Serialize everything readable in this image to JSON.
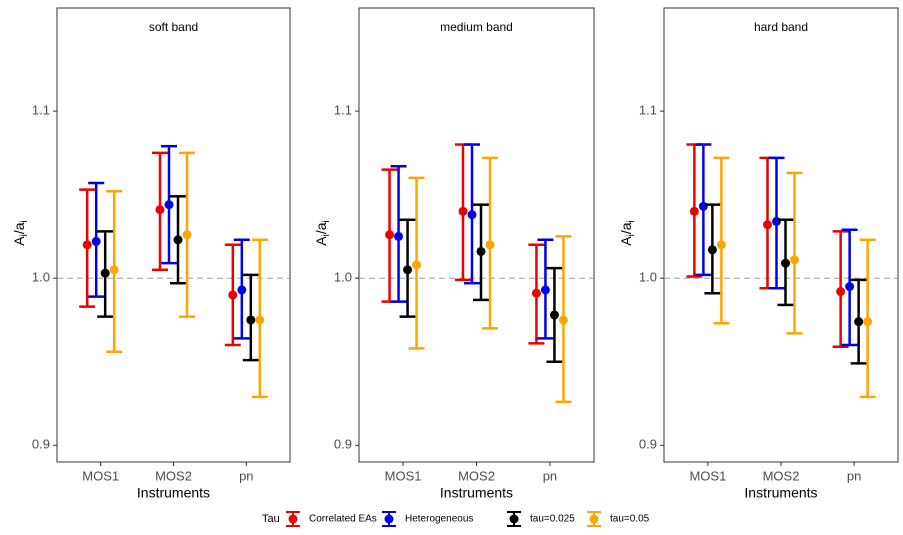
{
  "chart_data": {
    "type": "errorbar",
    "xlabel": "Instruments",
    "ylabel": [
      "A",
      "i",
      "/a",
      "i"
    ],
    "categories": [
      "MOS1",
      "MOS2",
      "pn"
    ],
    "ylim": [
      0.89,
      1.1617
    ],
    "yticks": [
      0.9,
      {
        "value": 1,
        "label": "1.0"
      },
      1.1
    ],
    "hline": 1,
    "legend_title": "Tau",
    "legend_position": "bottom",
    "series": [
      {
        "name": "Correlated EAs",
        "color": "#ee0000"
      },
      {
        "name": "Heterogeneous",
        "color": "#0000ee"
      },
      {
        "name": "tau=0.025",
        "color": "#000000"
      },
      {
        "name": "tau=0.05",
        "color": "#ffa500"
      }
    ],
    "panels": [
      {
        "title": "soft band",
        "series": [
          {
            "values": [
              1.02,
              1.041,
              0.99
            ],
            "low": [
              0.983,
              1.005,
              0.96
            ],
            "high": [
              1.053,
              1.075,
              1.02
            ]
          },
          {
            "values": [
              1.022,
              1.044,
              0.993
            ],
            "low": [
              0.989,
              1.009,
              0.964
            ],
            "high": [
              1.057,
              1.079,
              1.023
            ]
          },
          {
            "values": [
              1.003,
              1.023,
              0.975
            ],
            "low": [
              0.977,
              0.997,
              0.951
            ],
            "high": [
              1.028,
              1.049,
              1.002
            ]
          },
          {
            "values": [
              1.005,
              1.026,
              0.975
            ],
            "low": [
              0.956,
              0.977,
              0.929
            ],
            "high": [
              1.052,
              1.075,
              1.023
            ]
          }
        ]
      },
      {
        "title": "medium band",
        "series": [
          {
            "values": [
              1.026,
              1.04,
              0.991
            ],
            "low": [
              0.986,
              0.999,
              0.961
            ],
            "high": [
              1.065,
              1.08,
              1.02
            ]
          },
          {
            "values": [
              1.025,
              1.038,
              0.993
            ],
            "low": [
              0.986,
              0.997,
              0.964
            ],
            "high": [
              1.067,
              1.08,
              1.023
            ]
          },
          {
            "values": [
              1.005,
              1.016,
              0.978
            ],
            "low": [
              0.977,
              0.987,
              0.95
            ],
            "high": [
              1.035,
              1.044,
              1.006
            ]
          },
          {
            "values": [
              1.008,
              1.02,
              0.975
            ],
            "low": [
              0.958,
              0.97,
              0.926
            ],
            "high": [
              1.06,
              1.072,
              1.025
            ]
          }
        ]
      },
      {
        "title": "hard band",
        "series": [
          {
            "values": [
              1.04,
              1.032,
              0.992
            ],
            "low": [
              1.001,
              0.994,
              0.959
            ],
            "high": [
              1.08,
              1.072,
              1.028
            ]
          },
          {
            "values": [
              1.043,
              1.034,
              0.995
            ],
            "low": [
              1.002,
              0.994,
              0.96
            ],
            "high": [
              1.08,
              1.072,
              1.029
            ]
          },
          {
            "values": [
              1.017,
              1.009,
              0.974
            ],
            "low": [
              0.991,
              0.984,
              0.949
            ],
            "high": [
              1.044,
              1.035,
              0.999
            ]
          },
          {
            "values": [
              1.02,
              1.011,
              0.974
            ],
            "low": [
              0.973,
              0.967,
              0.929
            ],
            "high": [
              1.072,
              1.063,
              1.023
            ]
          }
        ]
      }
    ]
  }
}
